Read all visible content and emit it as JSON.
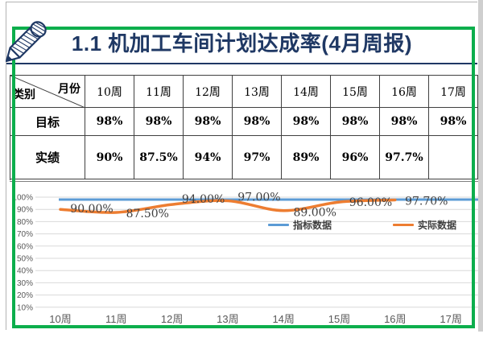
{
  "slide": {
    "title": "1.1  机加工车间计划达成率(4月周报)",
    "title_color": "#1F3864",
    "selection_border_color": "#0CAE4C"
  },
  "table": {
    "corner": {
      "left": "类别",
      "right": "月份"
    },
    "col_headers": [
      "10周",
      "11周",
      "12周",
      "13周",
      "14周",
      "15周",
      "16周",
      "17周"
    ],
    "row_headers": [
      "目标",
      "实绩"
    ],
    "rows": [
      [
        "98%",
        "98%",
        "98%",
        "98%",
        "98%",
        "98%",
        "98%",
        "98%"
      ],
      [
        "90%",
        "87.5%",
        "94%",
        "97%",
        "89%",
        "96%",
        "97.7%",
        ""
      ]
    ]
  },
  "chart_data": {
    "type": "line",
    "categories": [
      "10周",
      "11周",
      "12周",
      "13周",
      "14周",
      "15周",
      "16周",
      "17周"
    ],
    "series": [
      {
        "name": "指标数据",
        "color": "#5B9BD5",
        "values": [
          98,
          98,
          98,
          98,
          98,
          98,
          98,
          98
        ],
        "smooth": false
      },
      {
        "name": "实际数据",
        "color": "#ED7D31",
        "values": [
          90,
          87.5,
          94,
          97,
          89,
          96,
          97.7,
          null
        ],
        "smooth": true,
        "labels": [
          "90.00%",
          "87.50%",
          "94.00%",
          "97.00%",
          "89.00%",
          "96.00%",
          "97.70%"
        ],
        "label_dy": [
          4,
          6,
          -2,
          0,
          7,
          5,
          6
        ]
      }
    ],
    "yticks": [
      "100%",
      "90%",
      "80%",
      "70%",
      "60%",
      "50%",
      "40%",
      "30%",
      "20%",
      "10%"
    ],
    "ylim": [
      10,
      100
    ],
    "grid": true,
    "grid_color": "#D9D9D9",
    "axis_text_color": "#595959",
    "data_label_color": "#3F3F3F",
    "legend_position": "inside-center-right"
  }
}
